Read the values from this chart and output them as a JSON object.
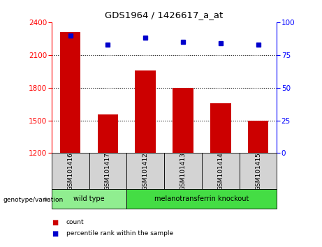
{
  "title": "GDS1964 / 1426617_a_at",
  "samples": [
    "GSM101416",
    "GSM101417",
    "GSM101412",
    "GSM101413",
    "GSM101414",
    "GSM101415"
  ],
  "counts": [
    2310,
    1555,
    1960,
    1800,
    1660,
    1495
  ],
  "percentile_ranks": [
    90,
    83,
    88,
    85,
    84,
    83
  ],
  "ylim_left": [
    1200,
    2400
  ],
  "ylim_right": [
    0,
    100
  ],
  "yticks_left": [
    1200,
    1500,
    1800,
    2100,
    2400
  ],
  "yticks_right": [
    0,
    25,
    50,
    75,
    100
  ],
  "bar_color": "#cc0000",
  "dot_color": "#0000cc",
  "bg_color": "#ffffff",
  "groups": [
    {
      "label": "wild type",
      "indices": [
        0,
        1
      ],
      "color": "#90ee90"
    },
    {
      "label": "melanotransferrin knockout",
      "indices": [
        2,
        3,
        4,
        5
      ],
      "color": "#44dd44"
    }
  ],
  "legend_items": [
    {
      "label": "count",
      "color": "#cc0000"
    },
    {
      "label": "percentile rank within the sample",
      "color": "#0000cc"
    }
  ],
  "genotype_label": "genotype/variation"
}
